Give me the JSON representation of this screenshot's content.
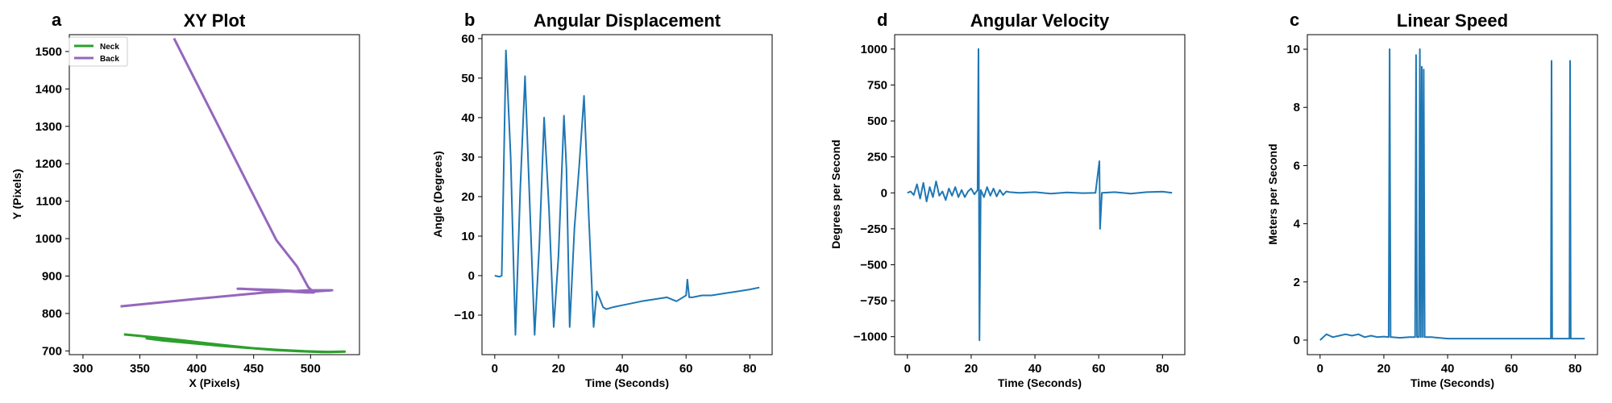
{
  "chart_data": [
    {
      "letter": "a",
      "type": "line",
      "title": "XY Plot",
      "xlabel": "X (Pixels)",
      "ylabel": "Y (Pixels)",
      "xlim": [
        288,
        543
      ],
      "ylim": [
        690,
        1545
      ],
      "xticks": [
        300,
        350,
        400,
        450,
        500
      ],
      "yticks": [
        700,
        800,
        900,
        1000,
        1100,
        1200,
        1300,
        1400,
        1500
      ],
      "legend_position": "top-left",
      "series": [
        {
          "name": "Neck",
          "color": "#2ca02c",
          "x": [
            336,
            350,
            370,
            390,
            410,
            430,
            450,
            470,
            490,
            510,
            530,
            518,
            495,
            470,
            445,
            420,
            395,
            370,
            355
          ],
          "y": [
            744,
            740,
            734,
            727,
            720,
            713,
            707,
            702,
            699,
            697,
            698,
            697,
            699,
            703,
            708,
            714,
            721,
            728,
            734
          ]
        },
        {
          "name": "Back",
          "color": "#9467bd",
          "x": [
            380,
            395,
            420,
            445,
            470,
            488,
            498,
            503,
            496,
            480,
            460,
            440,
            436,
            470,
            500,
            519,
            500,
            460,
            400,
            333
          ],
          "y": [
            1535,
            1445,
            1295,
            1145,
            996,
            926,
            870,
            856,
            856,
            859,
            862,
            866,
            866,
            863,
            858,
            862,
            862,
            856,
            839,
            819
          ]
        }
      ]
    },
    {
      "letter": "b",
      "type": "line",
      "title": "Angular Displacement",
      "xlabel": "Time (Seconds)",
      "ylabel": "Angle (Degrees)",
      "xlim": [
        -4,
        87
      ],
      "ylim": [
        -20,
        61
      ],
      "xticks": [
        0,
        20,
        40,
        60,
        80
      ],
      "yticks": [
        -10,
        0,
        10,
        20,
        30,
        40,
        50,
        60
      ],
      "series": [
        {
          "name": "",
          "color": "#1f77b4",
          "x": [
            0,
            1.5,
            2.2,
            3.5,
            5,
            6.5,
            8,
            9.5,
            11,
            12.5,
            14,
            15.5,
            17,
            18.5,
            20,
            21.7,
            22.5,
            23.5,
            25,
            26.5,
            28,
            29.5,
            31,
            32,
            33,
            34,
            35,
            37,
            40,
            43,
            46,
            50,
            54,
            57,
            60,
            60.4,
            61,
            62,
            65,
            68,
            72,
            76,
            80,
            83
          ],
          "y": [
            0,
            -0.3,
            0,
            57,
            30,
            -15,
            22,
            50.5,
            18,
            -15,
            8,
            40,
            17,
            -13,
            5,
            40.5,
            27,
            -13,
            12,
            28,
            45.5,
            15,
            -13,
            -4,
            -6,
            -8,
            -8.5,
            -8,
            -7.5,
            -7,
            -6.5,
            -6,
            -5.5,
            -6.5,
            -5,
            -1,
            -5.5,
            -5.5,
            -5,
            -5,
            -4.5,
            -4,
            -3.5,
            -3
          ]
        }
      ]
    },
    {
      "letter": "d",
      "type": "line",
      "title": "Angular Velocity",
      "xlabel": "Time (Seconds)",
      "ylabel": "Degrees per Second",
      "xlim": [
        -4,
        87
      ],
      "ylim": [
        -1125,
        1100
      ],
      "xticks": [
        0,
        20,
        40,
        60,
        80
      ],
      "yticks": [
        -1000,
        -750,
        -500,
        -250,
        0,
        250,
        500,
        750,
        1000
      ],
      "series": [
        {
          "name": "",
          "color": "#1f77b4",
          "x": [
            0,
            1,
            2,
            3,
            4,
            5,
            6,
            7,
            8,
            9,
            10,
            11,
            12,
            13,
            14,
            15,
            16,
            17,
            18,
            19,
            20,
            21,
            22,
            22.3,
            22.6,
            23,
            24,
            25,
            26,
            27,
            28,
            29,
            30,
            31,
            32,
            35,
            40,
            45,
            50,
            55,
            59,
            60.2,
            60.4,
            61,
            65,
            70,
            75,
            80,
            83
          ],
          "y": [
            0,
            10,
            -15,
            60,
            -40,
            70,
            -60,
            40,
            -30,
            80,
            -20,
            10,
            -50,
            30,
            -20,
            40,
            -30,
            20,
            -30,
            10,
            30,
            -10,
            20,
            1000,
            -1025,
            20,
            -30,
            40,
            -20,
            30,
            -25,
            20,
            -15,
            10,
            5,
            0,
            5,
            -5,
            3,
            -2,
            0,
            220,
            -250,
            0,
            5,
            -5,
            5,
            8,
            0
          ]
        }
      ]
    },
    {
      "letter": "c",
      "type": "line",
      "title": "Linear Speed",
      "xlabel": "Time (Seconds)",
      "ylabel": "Meters per Second",
      "xlim": [
        -4,
        87
      ],
      "ylim": [
        -0.5,
        10.5
      ],
      "xticks": [
        0,
        20,
        40,
        60,
        80
      ],
      "yticks": [
        0,
        2,
        4,
        6,
        8,
        10
      ],
      "series": [
        {
          "name": "",
          "color": "#1f77b4",
          "x": [
            0,
            2,
            4,
            6,
            8,
            10,
            12,
            14,
            16,
            18,
            20,
            21.5,
            21.8,
            22.1,
            22.5,
            25,
            28,
            29.8,
            30.1,
            30.4,
            31,
            31.3,
            31.6,
            31.9,
            32.2,
            32.5,
            32.8,
            35,
            40,
            45,
            50,
            55,
            60,
            65,
            70,
            72.4,
            72.6,
            72.8,
            75,
            78.2,
            78.4,
            78.6,
            80,
            83
          ],
          "y": [
            0,
            0.2,
            0.1,
            0.15,
            0.2,
            0.15,
            0.2,
            0.1,
            0.15,
            0.1,
            0.12,
            0.1,
            10,
            0.1,
            0.1,
            0.08,
            0.1,
            0.1,
            9.8,
            0.1,
            0.1,
            10,
            0.1,
            9.4,
            0.1,
            9.3,
            0.1,
            0.1,
            0.05,
            0.05,
            0.05,
            0.05,
            0.05,
            0.05,
            0.05,
            0.05,
            9.6,
            0.05,
            0.05,
            0.05,
            9.6,
            0.05,
            0.05,
            0.05
          ]
        }
      ]
    }
  ]
}
